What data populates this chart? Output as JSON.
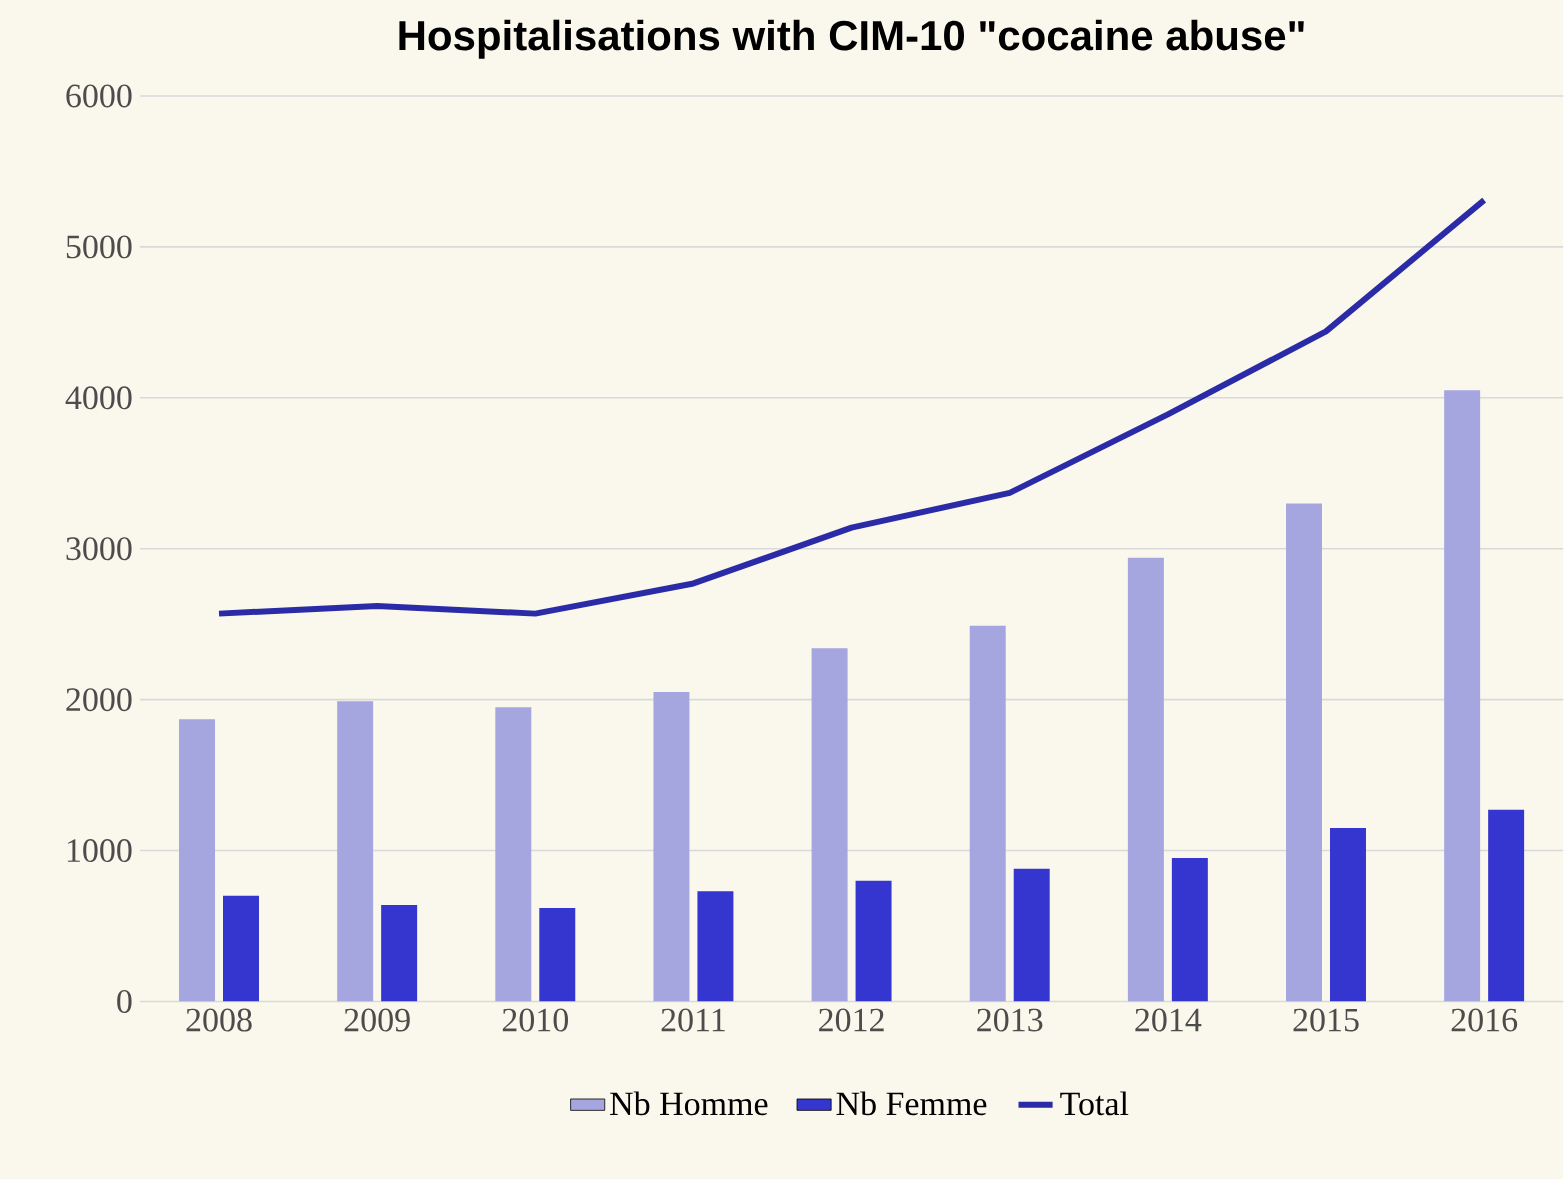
{
  "chart_data": {
    "type": "bar",
    "title": "Hospitalisations with CIM-10 \"cocaine abuse\"",
    "categories": [
      "2008",
      "2009",
      "2010",
      "2011",
      "2012",
      "2013",
      "2014",
      "2015",
      "2016"
    ],
    "series": [
      {
        "name": "Nb Homme",
        "color": "#a5a5e0",
        "values": [
          1870,
          1990,
          1950,
          2050,
          2340,
          2490,
          2940,
          3300,
          4050
        ]
      },
      {
        "name": "Nb Femme",
        "color": "#3535d0",
        "values": [
          700,
          640,
          620,
          730,
          800,
          880,
          950,
          1150,
          1270
        ]
      },
      {
        "name": "Total",
        "type": "line",
        "color": "#2b2ba8",
        "values": [
          2570,
          2620,
          2570,
          2770,
          3140,
          3370,
          3890,
          4440,
          5310
        ]
      }
    ],
    "ylim": [
      0,
      6000
    ],
    "yticks": [
      0,
      1000,
      2000,
      3000,
      4000,
      5000,
      6000
    ],
    "grid": "y",
    "legend": "bottom"
  }
}
